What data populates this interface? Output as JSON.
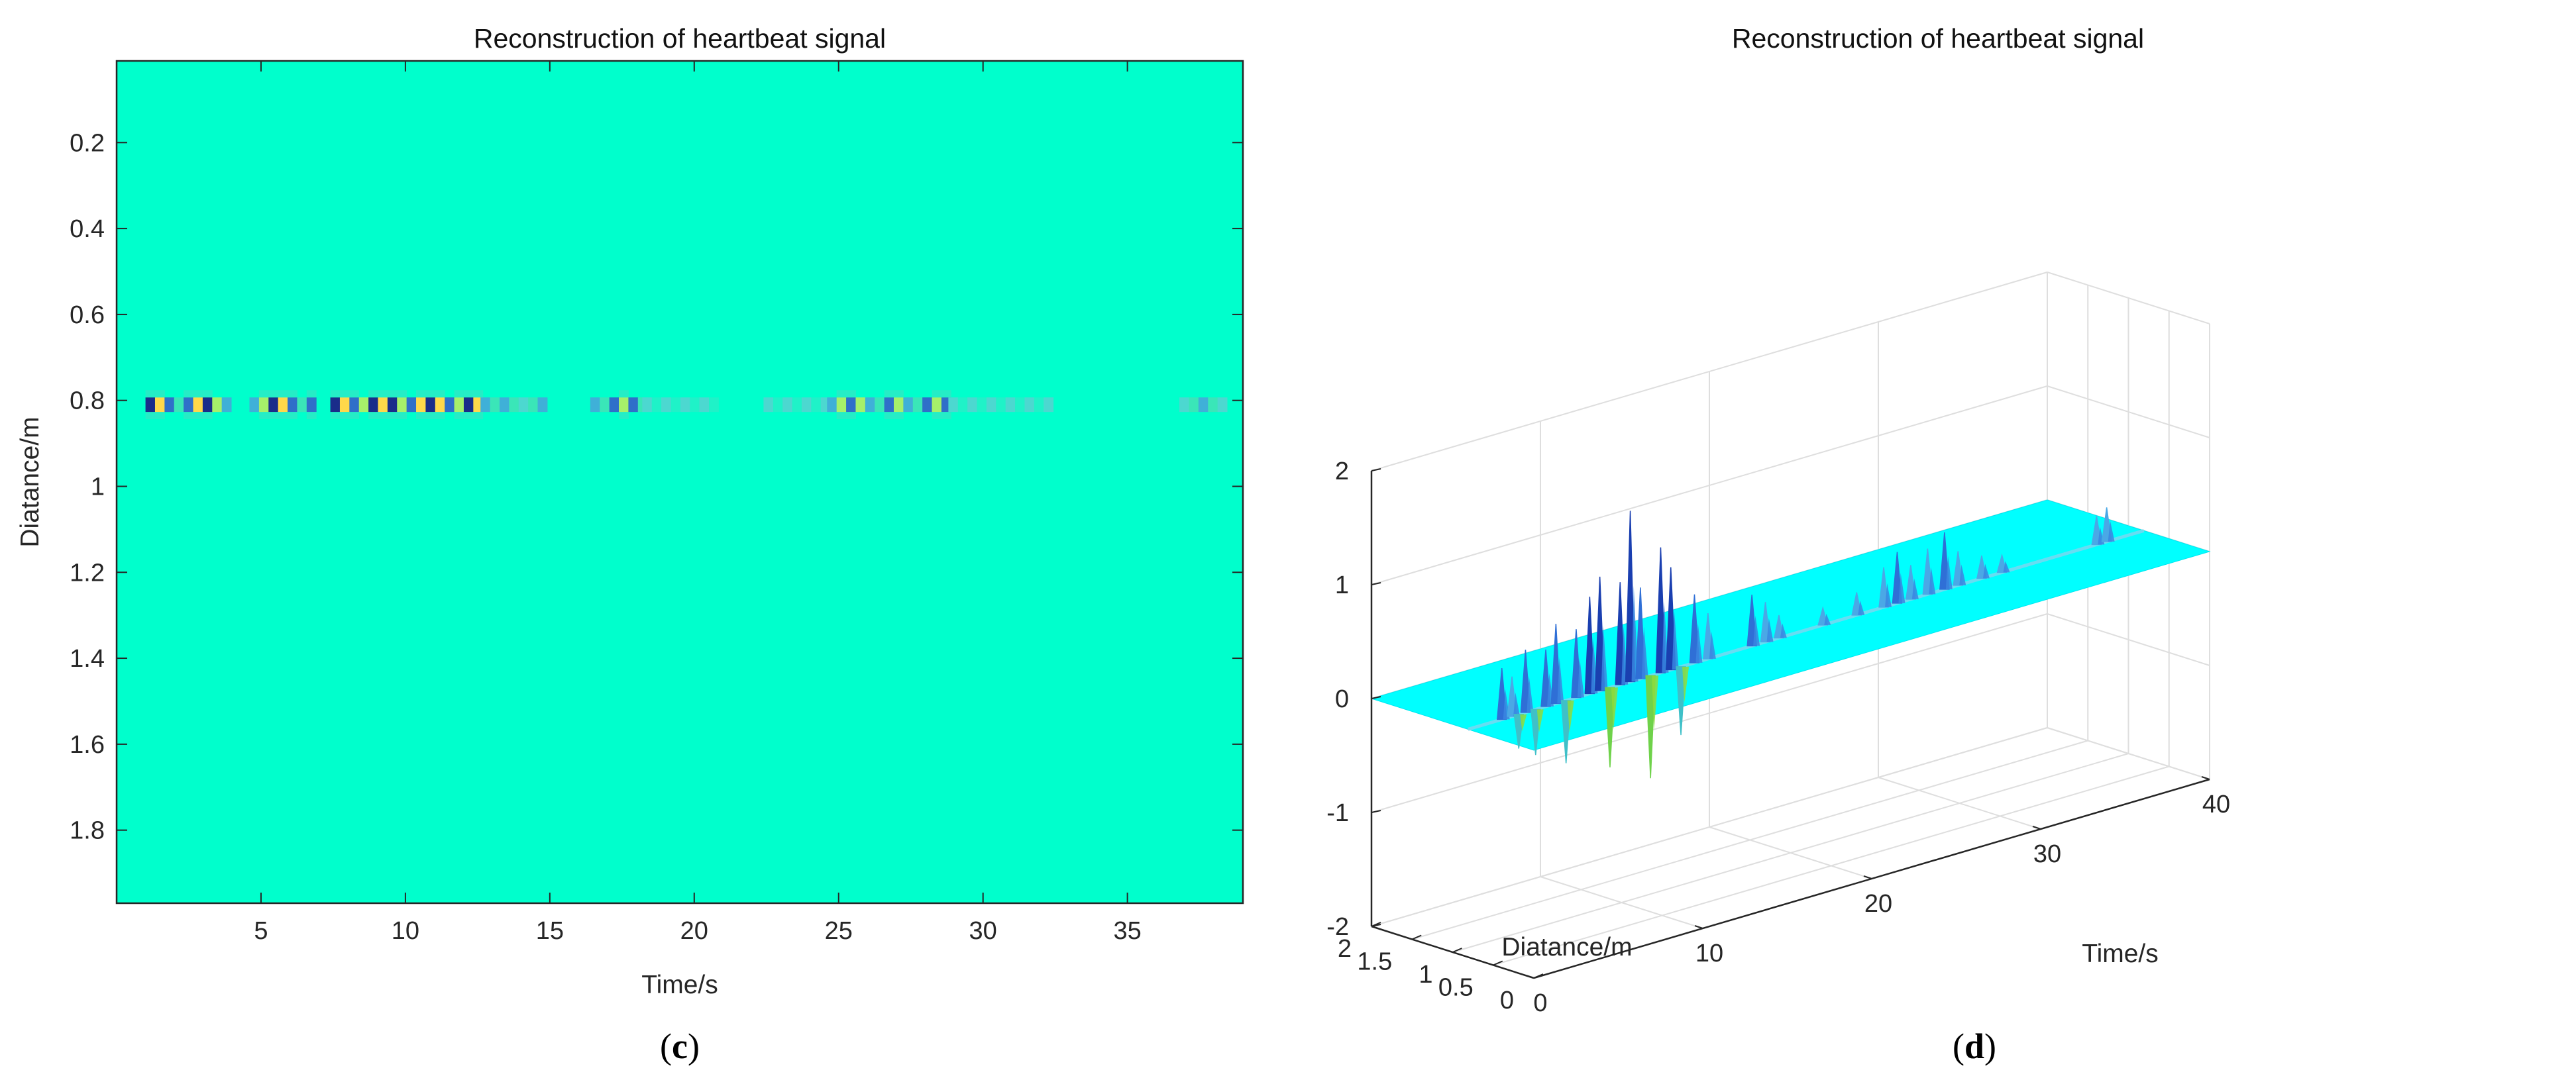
{
  "chart_data": [
    {
      "type": "heatmap",
      "title": "Reconstruction of heartbeat signal",
      "xlabel": "Time/s",
      "ylabel": "Diatance/m",
      "xlim": [
        0,
        39
      ],
      "ylim": [
        1.97,
        0.01
      ],
      "y_reversed": true,
      "grid": false,
      "background_color": "#00ffcc",
      "xticks": [
        5,
        10,
        15,
        20,
        25,
        30,
        35
      ],
      "xtick_labels": [
        "5",
        "10",
        "15",
        "20",
        "25",
        "30",
        "35"
      ],
      "yticks": [
        0.2,
        0.4,
        0.6,
        0.8,
        1.0,
        1.2,
        1.4,
        1.6,
        1.8
      ],
      "ytick_labels": [
        "0.2",
        "0.4",
        "0.6",
        "0.8",
        "1",
        "1.2",
        "1.4",
        "1.6",
        "1.8"
      ],
      "signal_row_distance": 0.81,
      "signal_segments": [
        {
          "t_start": 1.0,
          "t_end": 3.8,
          "intensity": 0.85
        },
        {
          "t_start": 4.6,
          "t_end": 6.6,
          "intensity": 0.9
        },
        {
          "t_start": 7.4,
          "t_end": 12.6,
          "intensity": 1.0
        },
        {
          "t_start": 12.6,
          "t_end": 14.6,
          "intensity": 0.5
        },
        {
          "t_start": 16.4,
          "t_end": 18.2,
          "intensity": 0.65
        },
        {
          "t_start": 18.2,
          "t_end": 20.6,
          "intensity": 0.25
        },
        {
          "t_start": 22.4,
          "t_end": 24.6,
          "intensity": 0.25
        },
        {
          "t_start": 24.6,
          "t_end": 28.8,
          "intensity": 0.7
        },
        {
          "t_start": 28.8,
          "t_end": 32.4,
          "intensity": 0.3
        },
        {
          "t_start": 36.8,
          "t_end": 38.2,
          "intensity": 0.5
        }
      ],
      "caption": "c"
    },
    {
      "type": "surface",
      "title": "Reconstruction of heartbeat signal",
      "xlabel": "Diatance/m",
      "ylabel": "Time/s",
      "zlabel": "",
      "xlim": [
        0,
        2
      ],
      "ylim": [
        0,
        40
      ],
      "zlim": [
        -2,
        2
      ],
      "xticks": [
        0,
        0.5,
        1,
        1.5,
        2
      ],
      "xtick_labels": [
        "0",
        "0.5",
        "1",
        "1.5",
        "2"
      ],
      "yticks": [
        0,
        10,
        20,
        30,
        40
      ],
      "ytick_labels": [
        "0",
        "10",
        "20",
        "30",
        "40"
      ],
      "zticks": [
        -2,
        -1,
        0,
        1,
        2
      ],
      "ztick_labels": [
        "-2",
        "-1",
        "0",
        "1",
        "2"
      ],
      "grid": true,
      "surface_color": "#00ffff",
      "ridge_distance": 0.81,
      "peaks": [
        {
          "time": 2.0,
          "z": 0.45
        },
        {
          "time": 2.6,
          "z": 0.35
        },
        {
          "time": 3.0,
          "z": -0.3
        },
        {
          "time": 3.4,
          "z": 0.55
        },
        {
          "time": 4.0,
          "z": -0.4
        },
        {
          "time": 4.6,
          "z": 0.5
        },
        {
          "time": 5.2,
          "z": 0.7
        },
        {
          "time": 5.8,
          "z": -0.55
        },
        {
          "time": 6.4,
          "z": 0.6
        },
        {
          "time": 7.2,
          "z": 0.85
        },
        {
          "time": 7.8,
          "z": 1.0
        },
        {
          "time": 8.4,
          "z": -0.7
        },
        {
          "time": 9.0,
          "z": 0.9
        },
        {
          "time": 9.6,
          "z": 1.5
        },
        {
          "time": 10.2,
          "z": 0.8
        },
        {
          "time": 10.8,
          "z": -0.9
        },
        {
          "time": 11.4,
          "z": 1.1
        },
        {
          "time": 12.0,
          "z": 0.9
        },
        {
          "time": 12.6,
          "z": -0.6
        },
        {
          "time": 13.4,
          "z": 0.6
        },
        {
          "time": 14.2,
          "z": 0.4
        },
        {
          "time": 16.8,
          "z": 0.45
        },
        {
          "time": 17.6,
          "z": 0.35
        },
        {
          "time": 18.4,
          "z": 0.2
        },
        {
          "time": 21.0,
          "z": 0.15
        },
        {
          "time": 23.0,
          "z": 0.2
        },
        {
          "time": 24.6,
          "z": 0.35
        },
        {
          "time": 25.4,
          "z": 0.45
        },
        {
          "time": 26.2,
          "z": 0.3
        },
        {
          "time": 27.2,
          "z": 0.4
        },
        {
          "time": 28.2,
          "z": 0.5
        },
        {
          "time": 29.0,
          "z": 0.3
        },
        {
          "time": 30.4,
          "z": 0.2
        },
        {
          "time": 31.6,
          "z": 0.15
        },
        {
          "time": 37.2,
          "z": 0.25
        },
        {
          "time": 37.8,
          "z": 0.3
        }
      ],
      "caption": "d"
    }
  ]
}
